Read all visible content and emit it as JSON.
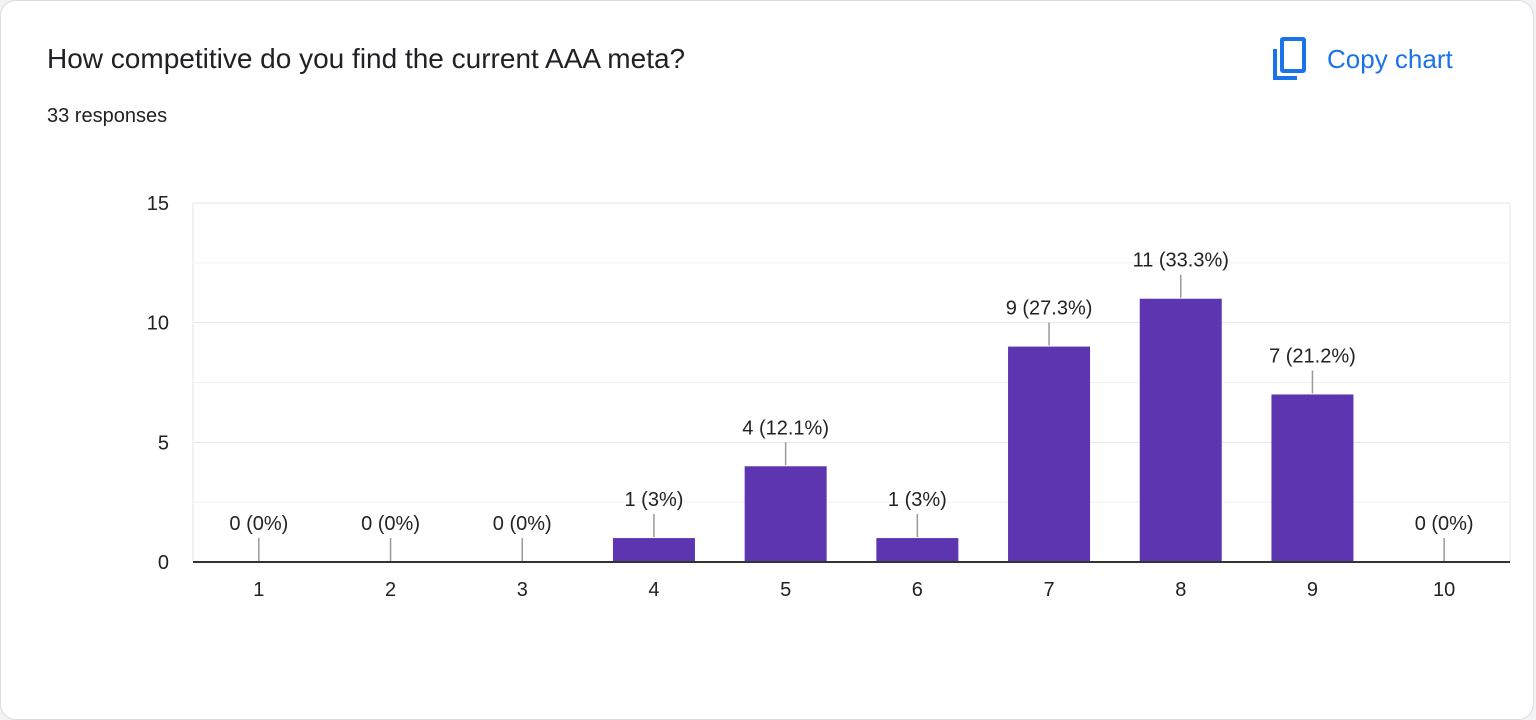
{
  "header": {
    "title": "How competitive do you find the current AAA meta?",
    "responses": "33 responses",
    "copy_label": "Copy chart",
    "copy_icon": "copy-icon"
  },
  "colors": {
    "bar": "#5e35b1",
    "accent": "#1a73e8",
    "grid": "#e6e6e6",
    "axis": "#333333"
  },
  "chart_data": {
    "type": "bar",
    "categories": [
      "1",
      "2",
      "3",
      "4",
      "5",
      "6",
      "7",
      "8",
      "9",
      "10"
    ],
    "values": [
      0,
      0,
      0,
      1,
      4,
      1,
      9,
      11,
      7,
      0
    ],
    "data_labels": [
      "0 (0%)",
      "0 (0%)",
      "0 (0%)",
      "1 (3%)",
      "4 (12.1%)",
      "1 (3%)",
      "9 (27.3%)",
      "11 (33.3%)",
      "7 (21.2%)",
      "0 (0%)"
    ],
    "title": "How competitive do you find the current AAA meta?",
    "subtitle": "33 responses",
    "xlabel": "",
    "ylabel": "",
    "ylim": [
      0,
      15
    ],
    "yticks": [
      0,
      5,
      10,
      15
    ],
    "minor_gridlines": true,
    "legend": "none"
  }
}
